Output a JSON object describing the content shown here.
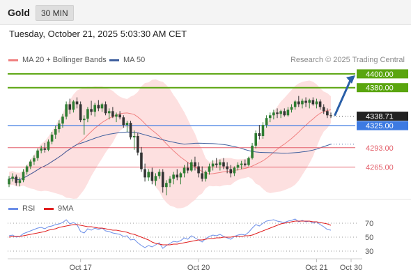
{
  "header": {
    "symbol": "Gold",
    "timeframe_label": "30 MIN"
  },
  "datetime": "Tuesday, October 21, 2025 5:03:30 AM CET",
  "credit": "Research © 2025 Trading Central",
  "colors": {
    "up": "#2e7d32",
    "down": "#333333",
    "bands": "#fcd6d6",
    "ma20": "#f08080",
    "ma50": "#3f5f9e",
    "resistance": "#5aa50f",
    "support": "#e35f6a",
    "pivot": "#3d7ae2",
    "price_tag": "#222222",
    "arrow": "#2a5fa8",
    "rsi": "#6b8ee8",
    "rsi_ma": "#e01e1e"
  },
  "chart_data": [
    {
      "type": "candlestick",
      "title": "",
      "legend": [
        {
          "label": "MA 20 + Bollinger Bands",
          "color": "#f08080"
        },
        {
          "label": "MA 50",
          "color": "#3f5f9e"
        }
      ],
      "ylim": [
        4215,
        4410
      ],
      "price_levels": [
        {
          "value": 4400.0,
          "label": "4400.00",
          "kind": "resistance"
        },
        {
          "value": 4380.0,
          "label": "4380.00",
          "kind": "resistance"
        },
        {
          "value": 4325.0,
          "label": "4325.00",
          "kind": "pivot"
        },
        {
          "value": 4293.0,
          "label": "4293.00",
          "kind": "support"
        },
        {
          "value": 4265.0,
          "label": "4265.00",
          "kind": "support"
        }
      ],
      "last_price": {
        "value": 4338.71,
        "label": "4338.71"
      },
      "x_ticks": [
        "Oct 17",
        "Oct 20",
        "Oct 21",
        "Oct 30"
      ],
      "x_tick_index": [
        20,
        53,
        86,
        100
      ],
      "candles": [
        [
          4240,
          4252,
          4236,
          4248
        ],
        [
          4248,
          4256,
          4244,
          4251
        ],
        [
          4251,
          4254,
          4238,
          4242
        ],
        [
          4242,
          4250,
          4237,
          4246
        ],
        [
          4246,
          4262,
          4243,
          4258
        ],
        [
          4258,
          4268,
          4254,
          4266
        ],
        [
          4266,
          4276,
          4262,
          4273
        ],
        [
          4273,
          4282,
          4268,
          4278
        ],
        [
          4278,
          4292,
          4274,
          4289
        ],
        [
          4289,
          4296,
          4285,
          4292
        ],
        [
          4292,
          4300,
          4286,
          4290
        ],
        [
          4290,
          4305,
          4288,
          4302
        ],
        [
          4302,
          4316,
          4298,
          4312
        ],
        [
          4312,
          4325,
          4306,
          4320
        ],
        [
          4320,
          4333,
          4315,
          4328
        ],
        [
          4328,
          4342,
          4322,
          4338
        ],
        [
          4338,
          4360,
          4334,
          4356
        ],
        [
          4356,
          4364,
          4342,
          4348
        ],
        [
          4348,
          4362,
          4344,
          4360
        ],
        [
          4360,
          4366,
          4350,
          4356
        ],
        [
          4356,
          4360,
          4330,
          4333
        ],
        [
          4333,
          4340,
          4312,
          4335
        ],
        [
          4335,
          4352,
          4330,
          4349
        ],
        [
          4349,
          4361,
          4340,
          4345
        ],
        [
          4345,
          4358,
          4338,
          4355
        ],
        [
          4355,
          4362,
          4346,
          4350
        ],
        [
          4350,
          4358,
          4345,
          4356
        ],
        [
          4356,
          4360,
          4340,
          4343
        ],
        [
          4343,
          4350,
          4334,
          4346
        ],
        [
          4346,
          4352,
          4336,
          4338
        ],
        [
          4338,
          4344,
          4330,
          4341
        ],
        [
          4341,
          4346,
          4334,
          4337
        ],
        [
          4337,
          4340,
          4322,
          4326
        ],
        [
          4326,
          4332,
          4316,
          4329
        ],
        [
          4329,
          4332,
          4305,
          4308
        ],
        [
          4308,
          4318,
          4290,
          4310
        ],
        [
          4310,
          4314,
          4282,
          4286
        ],
        [
          4286,
          4294,
          4258,
          4262
        ],
        [
          4262,
          4270,
          4244,
          4250
        ],
        [
          4250,
          4262,
          4245,
          4258
        ],
        [
          4258,
          4264,
          4240,
          4245
        ],
        [
          4245,
          4256,
          4238,
          4252
        ],
        [
          4252,
          4262,
          4248,
          4258
        ],
        [
          4258,
          4262,
          4228,
          4236
        ],
        [
          4236,
          4246,
          4224,
          4242
        ],
        [
          4242,
          4252,
          4236,
          4248
        ],
        [
          4248,
          4258,
          4240,
          4254
        ],
        [
          4254,
          4262,
          4246,
          4250
        ],
        [
          4250,
          4258,
          4240,
          4256
        ],
        [
          4256,
          4268,
          4250,
          4264
        ],
        [
          4264,
          4272,
          4256,
          4260
        ],
        [
          4260,
          4276,
          4258,
          4272
        ],
        [
          4272,
          4280,
          4260,
          4266
        ],
        [
          4266,
          4272,
          4250,
          4256
        ],
        [
          4256,
          4266,
          4244,
          4248
        ],
        [
          4248,
          4260,
          4244,
          4258
        ],
        [
          4258,
          4270,
          4254,
          4266
        ],
        [
          4266,
          4275,
          4260,
          4270
        ],
        [
          4270,
          4278,
          4264,
          4268
        ],
        [
          4268,
          4276,
          4260,
          4272
        ],
        [
          4272,
          4278,
          4262,
          4266
        ],
        [
          4266,
          4272,
          4256,
          4262
        ],
        [
          4262,
          4268,
          4250,
          4256
        ],
        [
          4256,
          4266,
          4252,
          4264
        ],
        [
          4264,
          4272,
          4260,
          4268
        ],
        [
          4268,
          4274,
          4262,
          4270
        ],
        [
          4270,
          4276,
          4266,
          4268
        ],
        [
          4268,
          4280,
          4266,
          4278
        ],
        [
          4278,
          4300,
          4276,
          4296
        ],
        [
          4296,
          4318,
          4292,
          4314
        ],
        [
          4314,
          4326,
          4305,
          4310
        ],
        [
          4310,
          4330,
          4306,
          4326
        ],
        [
          4326,
          4340,
          4322,
          4336
        ],
        [
          4336,
          4344,
          4330,
          4340
        ],
        [
          4340,
          4348,
          4334,
          4344
        ],
        [
          4344,
          4350,
          4336,
          4342
        ],
        [
          4342,
          4348,
          4336,
          4346
        ],
        [
          4346,
          4350,
          4338,
          4340
        ],
        [
          4340,
          4352,
          4338,
          4348
        ],
        [
          4348,
          4356,
          4344,
          4352
        ],
        [
          4352,
          4362,
          4348,
          4360
        ],
        [
          4360,
          4368,
          4352,
          4356
        ],
        [
          4356,
          4364,
          4350,
          4361
        ],
        [
          4361,
          4366,
          4352,
          4358
        ],
        [
          4358,
          4364,
          4350,
          4362
        ],
        [
          4362,
          4366,
          4354,
          4356
        ],
        [
          4356,
          4364,
          4350,
          4360
        ],
        [
          4360,
          4363,
          4348,
          4352
        ],
        [
          4352,
          4356,
          4342,
          4346
        ],
        [
          4346,
          4350,
          4336,
          4340
        ],
        [
          4340,
          4344,
          4336,
          4339
        ]
      ]
    },
    {
      "type": "line",
      "title": "",
      "legend": [
        {
          "label": "RSI",
          "color": "#6b8ee8"
        },
        {
          "label": "9MA",
          "color": "#e01e1e"
        }
      ],
      "ylim": [
        20,
        80
      ],
      "y_ticks": [
        "70",
        "50",
        "30"
      ],
      "y_tick_values": [
        70,
        50,
        30
      ],
      "series": [
        {
          "name": "RSI",
          "values": [
            52,
            53,
            50,
            51,
            55,
            57,
            59,
            61,
            63,
            64,
            62,
            65,
            66,
            68,
            69,
            71,
            75,
            69,
            71,
            68,
            58,
            56,
            62,
            60,
            63,
            61,
            63,
            59,
            58,
            56,
            55,
            54,
            51,
            52,
            46,
            47,
            42,
            38,
            35,
            38,
            36,
            39,
            42,
            34,
            38,
            41,
            44,
            43,
            45,
            49,
            47,
            52,
            49,
            46,
            43,
            48,
            51,
            53,
            52,
            54,
            51,
            49,
            47,
            51,
            53,
            54,
            53,
            57,
            63,
            68,
            66,
            70,
            73,
            74,
            75,
            73,
            72,
            71,
            73,
            74,
            76,
            72,
            74,
            72,
            73,
            70,
            72,
            68,
            65,
            61,
            60
          ]
        },
        {
          "name": "9MA",
          "values": [
            50,
            51,
            51,
            51,
            52,
            53,
            54,
            55,
            56,
            57,
            58,
            60,
            61,
            62,
            64,
            65,
            66,
            67,
            68,
            68,
            67,
            66,
            65,
            65,
            64,
            63,
            63,
            62,
            61,
            60,
            60,
            59,
            58,
            57,
            55,
            54,
            52,
            50,
            48,
            46,
            43,
            41,
            40,
            39,
            39,
            39,
            40,
            40,
            41,
            42,
            43,
            44,
            45,
            46,
            46,
            47,
            48,
            48,
            49,
            49,
            50,
            50,
            50,
            51,
            51,
            51,
            52,
            52,
            53,
            55,
            57,
            59,
            61,
            63,
            65,
            67,
            69,
            70,
            71,
            72,
            73,
            73,
            73,
            73,
            73,
            72,
            72,
            71,
            70,
            69,
            67
          ]
        }
      ]
    }
  ]
}
